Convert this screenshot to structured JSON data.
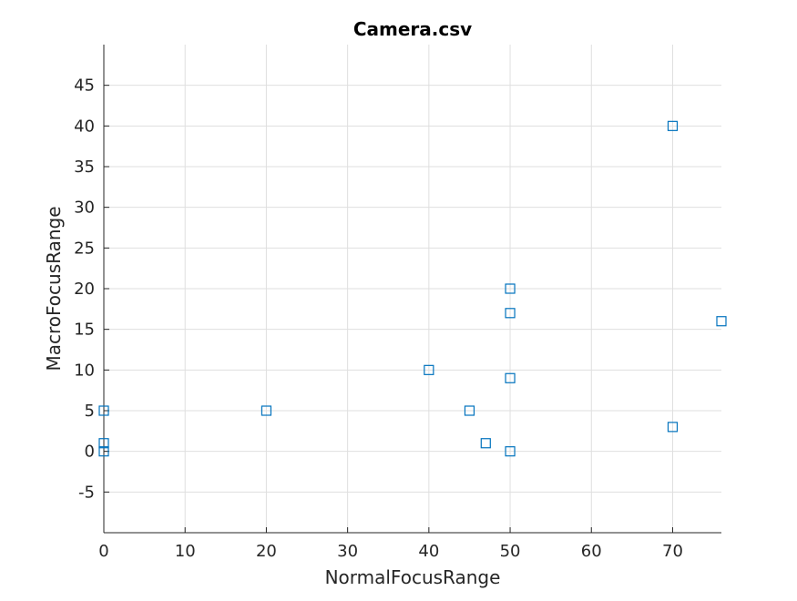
{
  "chart_data": {
    "type": "scatter",
    "title": "Camera.csv",
    "xlabel": "NormalFocusRange",
    "ylabel": "MacroFocusRange",
    "xlim": [
      0,
      76
    ],
    "ylim": [
      -10,
      50
    ],
    "xticks": [
      0,
      10,
      20,
      30,
      40,
      50,
      60,
      70
    ],
    "yticks": [
      -5,
      0,
      5,
      10,
      15,
      20,
      25,
      30,
      35,
      40,
      45
    ],
    "grid": true,
    "marker": "square",
    "color": "#0072BD",
    "series": [
      {
        "x": [
          0,
          0,
          0,
          20,
          40,
          45,
          47,
          50,
          50,
          50,
          50,
          70,
          70,
          76
        ],
        "y": [
          5,
          1,
          0,
          5,
          10,
          5,
          1,
          20,
          17,
          9,
          0,
          40,
          3,
          16
        ]
      }
    ]
  }
}
